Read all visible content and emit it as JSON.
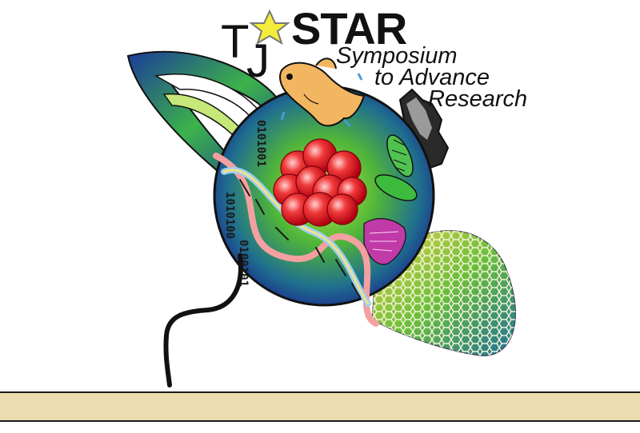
{
  "logo": {
    "letter_t": "T",
    "letter_j": "J",
    "star_word": "STAR",
    "tagline_line1": "Symposium",
    "tagline_line2": "to Advance",
    "tagline_line3": "Research",
    "binary_strip_1": "0101001",
    "binary_strip_2": "1010100",
    "binary_strip_3": "0100101",
    "colors": {
      "globe_dark": "#1b2f8c",
      "globe_light": "#9adf3a",
      "ring": "#1f6fb0",
      "nucleus": "#e8202a",
      "star": "#f4ec3a",
      "fish": "#f3b660",
      "bottom_bar": "#ecdcb0"
    }
  }
}
